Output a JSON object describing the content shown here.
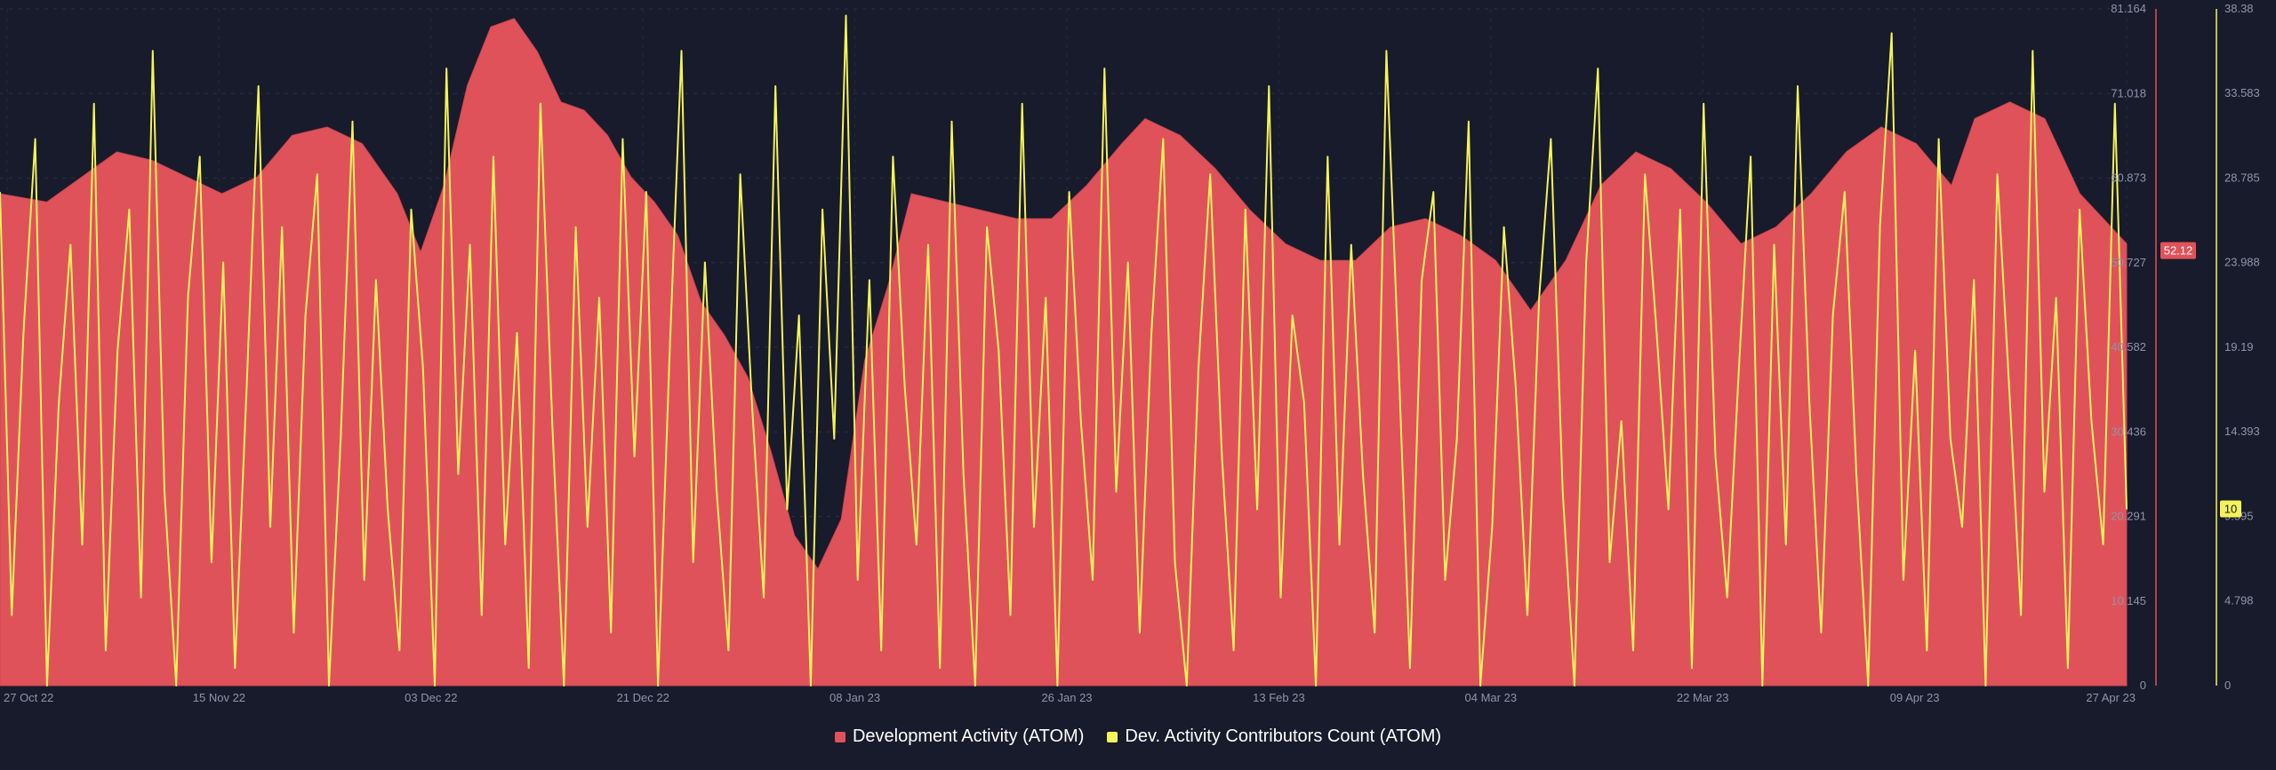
{
  "chart_data": {
    "type": "area+line",
    "x_start": "2022-10-27",
    "x_end": "2023-04-27",
    "x_ticks": [
      "27 Oct 22",
      "15 Nov 22",
      "03 Dec 22",
      "21 Dec 22",
      "08 Jan 23",
      "26 Jan 23",
      "13 Feb 23",
      "04 Mar 23",
      "22 Mar 23",
      "09 Apr 23",
      "27 Apr 23"
    ],
    "left_axis": {
      "ticks": [
        "0",
        "10.145",
        "20.291",
        "30.436",
        "40.582",
        "50.727",
        "60.873",
        "71.018",
        "81.164"
      ],
      "ylim": [
        0,
        81.164
      ],
      "color": "#e0525a"
    },
    "right_axis": {
      "ticks": [
        "0",
        "4.798",
        "9.595",
        "14.393",
        "19.19",
        "23.988",
        "28.785",
        "33.583",
        "38.38"
      ],
      "ylim": [
        0,
        38.38
      ],
      "color": "#f3f35a"
    },
    "series": [
      {
        "name": "Development Activity (ATOM)",
        "kind": "area",
        "axis": "left",
        "color": "#e0525a",
        "current_value": "52.12",
        "points": [
          [
            "2022-10-27",
            59
          ],
          [
            "2022-10-31",
            58
          ],
          [
            "2022-11-03",
            61
          ],
          [
            "2022-11-06",
            64
          ],
          [
            "2022-11-09",
            63
          ],
          [
            "2022-11-12",
            61
          ],
          [
            "2022-11-15",
            59
          ],
          [
            "2022-11-18",
            61
          ],
          [
            "2022-11-21",
            66
          ],
          [
            "2022-11-24",
            67
          ],
          [
            "2022-11-27",
            65
          ],
          [
            "2022-11-30",
            59
          ],
          [
            "2022-12-02",
            52
          ],
          [
            "2022-12-04",
            60
          ],
          [
            "2022-12-06",
            72
          ],
          [
            "2022-12-08",
            79
          ],
          [
            "2022-12-10",
            80
          ],
          [
            "2022-12-12",
            76
          ],
          [
            "2022-12-14",
            70
          ],
          [
            "2022-12-16",
            69
          ],
          [
            "2022-12-18",
            66
          ],
          [
            "2022-12-20",
            61
          ],
          [
            "2022-12-22",
            58
          ],
          [
            "2022-12-24",
            54
          ],
          [
            "2022-12-26",
            46
          ],
          [
            "2022-12-28",
            42
          ],
          [
            "2022-12-30",
            37
          ],
          [
            "2023-01-01",
            28
          ],
          [
            "2023-01-03",
            18
          ],
          [
            "2023-01-05",
            14
          ],
          [
            "2023-01-07",
            20
          ],
          [
            "2023-01-09",
            39
          ],
          [
            "2023-01-11",
            48
          ],
          [
            "2023-01-13",
            59
          ],
          [
            "2023-01-16",
            58
          ],
          [
            "2023-01-19",
            57
          ],
          [
            "2023-01-22",
            56
          ],
          [
            "2023-01-25",
            56
          ],
          [
            "2023-01-28",
            60
          ],
          [
            "2023-01-31",
            65
          ],
          [
            "2023-02-02",
            68
          ],
          [
            "2023-02-05",
            66
          ],
          [
            "2023-02-08",
            62
          ],
          [
            "2023-02-11",
            57
          ],
          [
            "2023-02-14",
            53
          ],
          [
            "2023-02-17",
            51
          ],
          [
            "2023-02-20",
            51
          ],
          [
            "2023-02-23",
            55
          ],
          [
            "2023-02-26",
            56
          ],
          [
            "2023-03-01",
            54
          ],
          [
            "2023-03-04",
            51
          ],
          [
            "2023-03-07",
            45
          ],
          [
            "2023-03-10",
            51
          ],
          [
            "2023-03-13",
            60
          ],
          [
            "2023-03-16",
            64
          ],
          [
            "2023-03-19",
            62
          ],
          [
            "2023-03-22",
            58
          ],
          [
            "2023-03-25",
            53
          ],
          [
            "2023-03-28",
            55
          ],
          [
            "2023-03-31",
            59
          ],
          [
            "2023-04-03",
            64
          ],
          [
            "2023-04-06",
            67
          ],
          [
            "2023-04-09",
            65
          ],
          [
            "2023-04-12",
            60
          ],
          [
            "2023-04-14",
            68
          ],
          [
            "2023-04-17",
            70
          ],
          [
            "2023-04-20",
            68
          ],
          [
            "2023-04-23",
            59
          ],
          [
            "2023-04-25",
            56
          ],
          [
            "2023-04-27",
            53
          ]
        ]
      },
      {
        "name": "Dev. Activity Contributors Count (ATOM)",
        "kind": "line",
        "axis": "right",
        "color": "#f3f35a",
        "current_value": "10",
        "summary": "daily values oscillating between 0 and roughly 38, approximately weekly peaks",
        "values": [
          28,
          4,
          20,
          31,
          0,
          16,
          25,
          8,
          33,
          2,
          19,
          27,
          5,
          36,
          11,
          0,
          22,
          30,
          7,
          24,
          1,
          17,
          34,
          9,
          26,
          3,
          21,
          29,
          0,
          14,
          32,
          6,
          23,
          10,
          2,
          27,
          18,
          0,
          35,
          12,
          25,
          4,
          30,
          8,
          20,
          1,
          33,
          15,
          0,
          26,
          9,
          22,
          3,
          31,
          13,
          28,
          0,
          19,
          36,
          7,
          24,
          11,
          2,
          29,
          16,
          5,
          34,
          10,
          21,
          0,
          27,
          14,
          38,
          6,
          23,
          2,
          30,
          17,
          8,
          25,
          1,
          32,
          12,
          0,
          26,
          19,
          4,
          33,
          9,
          22,
          0,
          28,
          15,
          6,
          35,
          11,
          24,
          3,
          20,
          31,
          7,
          0,
          18,
          29,
          13,
          2,
          27,
          10,
          34,
          5,
          21,
          16,
          0,
          30,
          8,
          25,
          12,
          3,
          36,
          19,
          1,
          23,
          28,
          6,
          14,
          32,
          0,
          9,
          26,
          17,
          4,
          22,
          31,
          11,
          0,
          24,
          35,
          7,
          15,
          2,
          29,
          20,
          10,
          27,
          1,
          33,
          13,
          5,
          18,
          30,
          0,
          25,
          8,
          34,
          16,
          3,
          21,
          28,
          12,
          0,
          26,
          37,
          6,
          19,
          2,
          31,
          14,
          9,
          23,
          0,
          29,
          17,
          4,
          36,
          11,
          22,
          1,
          27,
          15,
          8,
          33,
          10
        ]
      }
    ]
  }
}
